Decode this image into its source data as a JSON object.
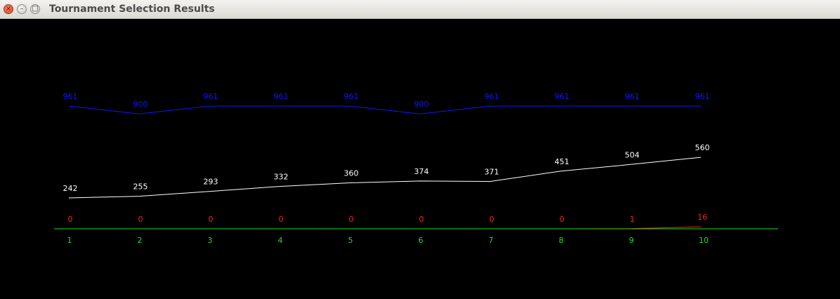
{
  "window": {
    "title": "Tournament Selection Results",
    "close_glyph": "×",
    "minimize_glyph": "–",
    "maximize_glyph": "□"
  },
  "chart_data": {
    "type": "line",
    "title": "",
    "xlabel": "",
    "ylabel": "",
    "grid": false,
    "legend": "none",
    "categories": [
      "1",
      "2",
      "3",
      "4",
      "5",
      "6",
      "7",
      "8",
      "9",
      "10"
    ],
    "ylim": [
      0,
      1100
    ],
    "series": [
      {
        "color": "#1414ff",
        "values": [
          961,
          900,
          961,
          961,
          961,
          900,
          961,
          961,
          961,
          961
        ]
      },
      {
        "color": "#ffffff",
        "values": [
          242,
          255,
          293,
          332,
          360,
          374,
          371,
          451,
          504,
          560
        ]
      },
      {
        "color": "#ff2020",
        "values": [
          0,
          0,
          0,
          0,
          0,
          0,
          0,
          0,
          1,
          16
        ]
      }
    ],
    "axis_color": "#22dd22"
  }
}
